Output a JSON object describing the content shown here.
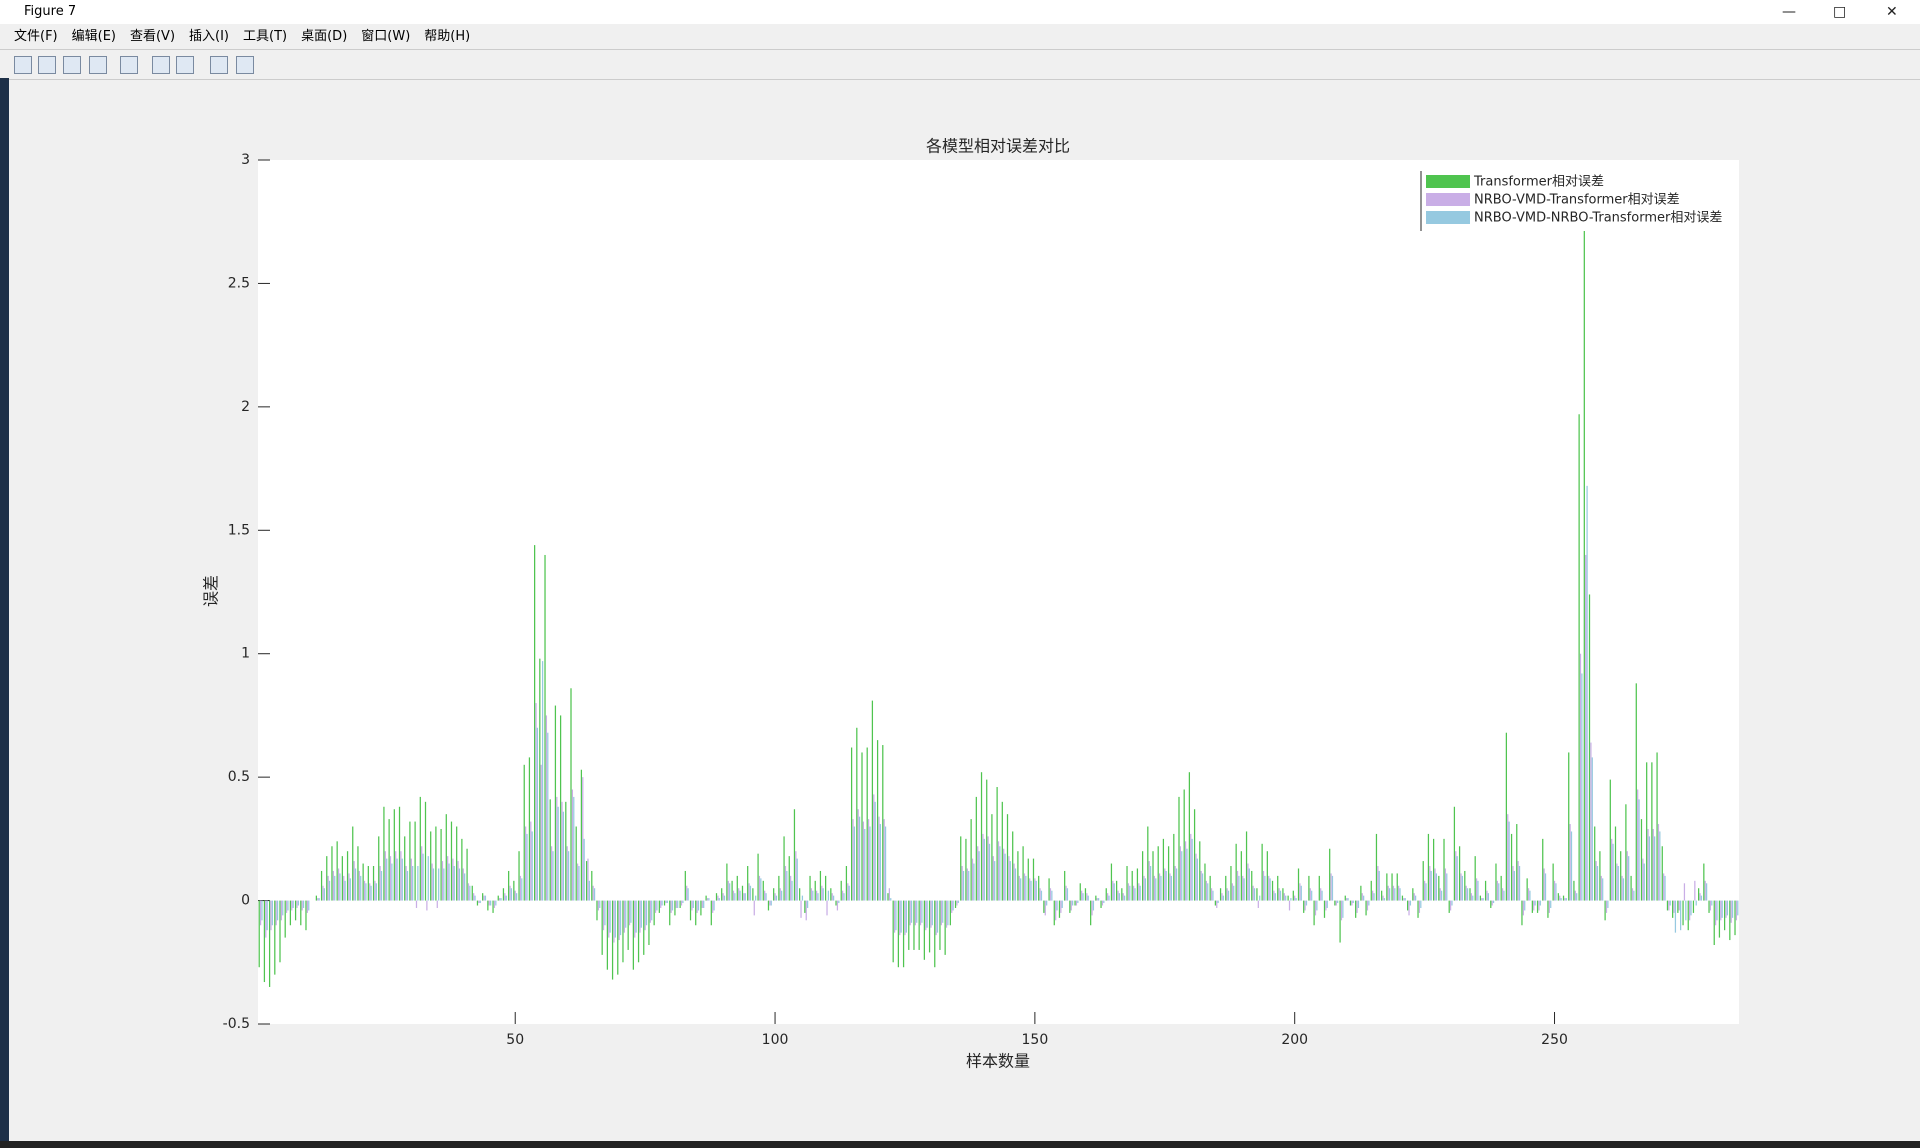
{
  "window": {
    "title": "Figure 7",
    "menu": [
      "文件(F)",
      "编辑(E)",
      "查看(V)",
      "插入(I)",
      "工具(T)",
      "桌面(D)",
      "窗口(W)",
      "帮助(H)"
    ]
  },
  "chart_data": {
    "type": "bar",
    "title": "各模型相对误差对比",
    "xlabel": "样本数量",
    "ylabel": "误差",
    "xlim": [
      0.5,
      285.5
    ],
    "xticks": [
      50,
      100,
      150,
      200,
      250
    ],
    "ylim": [
      -0.5,
      3
    ],
    "yticks": [
      -0.5,
      0,
      0.5,
      1,
      1.5,
      2,
      2.5,
      3
    ],
    "grid": false,
    "legend": "northeast",
    "series": [
      {
        "name": "Transformer相对误差",
        "color": "#4fc44f",
        "values": [
          -0.27,
          -0.33,
          -0.35,
          -0.3,
          -0.25,
          -0.15,
          -0.1,
          -0.08,
          -0.1,
          -0.12,
          0,
          0.02,
          0.12,
          0.18,
          0.22,
          0.24,
          0.18,
          0.2,
          0.3,
          0.22,
          0.15,
          0.14,
          0.14,
          0.26,
          0.38,
          0.33,
          0.37,
          0.38,
          0.26,
          0.32,
          0.32,
          0.42,
          0.4,
          0.28,
          0.3,
          0.29,
          0.35,
          0.32,
          0.3,
          0.25,
          0.21,
          0.06,
          -0.02,
          0.03,
          -0.04,
          -0.05,
          0.02,
          0.05,
          0.12,
          0.08,
          0.2,
          0.55,
          0.58,
          1.44,
          0.98,
          1.4,
          0.41,
          0.79,
          0.75,
          0.4,
          0.86,
          0.3,
          0.53,
          0.16,
          0.12,
          -0.08,
          -0.22,
          -0.28,
          -0.32,
          -0.3,
          -0.25,
          -0.2,
          -0.28,
          -0.25,
          -0.22,
          -0.18,
          -0.1,
          -0.05,
          -0.02,
          -0.1,
          -0.06,
          -0.03,
          0.12,
          -0.08,
          -0.1,
          -0.06,
          0.02,
          -0.1,
          0.03,
          0.05,
          0.15,
          0.08,
          0.1,
          0.06,
          0.14,
          0.05,
          0.19,
          0.08,
          -0.04,
          0.05,
          0.1,
          0.26,
          0.18,
          0.37,
          0.05,
          -0.05,
          0.1,
          0.08,
          0.12,
          0.1,
          0.05,
          -0.02,
          0.08,
          0.14,
          0.62,
          0.7,
          0.6,
          0.62,
          0.81,
          0.65,
          0.63,
          0.03,
          -0.25,
          -0.27,
          -0.27,
          -0.2,
          -0.2,
          -0.2,
          -0.24,
          -0.21,
          -0.27,
          -0.2,
          -0.22,
          -0.1,
          -0.03,
          0.26,
          0.25,
          0.33,
          0.42,
          0.52,
          0.49,
          0.35,
          0.46,
          0.4,
          0.35,
          0.28,
          0.2,
          0.22,
          0.17,
          0.17,
          0.1,
          -0.05,
          0.09,
          -0.1,
          -0.07,
          0.12,
          -0.05,
          -0.02,
          0.07,
          0.05,
          -0.1,
          0.02,
          -0.03,
          0.05,
          0.15,
          0.08,
          0.05,
          0.14,
          0.12,
          0.13,
          0.2,
          0.3,
          0.2,
          0.22,
          0.25,
          0.22,
          0.27,
          0.42,
          0.45,
          0.52,
          0.37,
          0.24,
          0.15,
          0.1,
          -0.02,
          0.05,
          0.1,
          0.14,
          0.23,
          0.2,
          0.28,
          0.12,
          0.05,
          0.23,
          0.2,
          0.08,
          0.1,
          0.05,
          0.02,
          0.04,
          0.13,
          -0.05,
          0.1,
          -0.1,
          0.1,
          -0.07,
          0.21,
          -0.02,
          -0.17,
          0.02,
          -0.02,
          -0.07,
          0.06,
          -0.06,
          0.08,
          0.27,
          0.04,
          0.11,
          0.11,
          0.11,
          0.02,
          -0.04,
          0.05,
          -0.07,
          0.16,
          0.27,
          0.25,
          0.1,
          0.25,
          -0.05,
          0.38,
          0.22,
          0.12,
          0.05,
          0.18,
          0.02,
          0.08,
          -0.03,
          0.15,
          0.1,
          0.68,
          0.27,
          0.31,
          -0.1,
          0.09,
          -0.05,
          -0.05,
          0.25,
          -0.07,
          0.15,
          0.03,
          0.02,
          0.6,
          0.08,
          1.97,
          2.72,
          1.24,
          0.3,
          0.2,
          -0.08,
          0.49,
          0.3,
          0.2,
          0.39,
          0.1,
          0.88,
          0.33,
          0.56,
          0.56,
          0.6,
          0.22,
          -0.04,
          -0.07,
          -0.05,
          -0.1,
          -0.12,
          -0.05,
          0.05,
          0.15,
          -0.05,
          -0.18,
          -0.15,
          -0.12,
          -0.16,
          -0.14
        ]
      },
      {
        "name": "NRBO-VMD-Transformer相对误差",
        "color": "#c9aee6",
        "values": [
          -0.1,
          -0.15,
          -0.12,
          -0.1,
          -0.08,
          -0.05,
          -0.04,
          -0.03,
          -0.04,
          -0.05,
          0,
          0.01,
          0.06,
          0.1,
          0.12,
          0.13,
          0.1,
          0.11,
          0.16,
          0.12,
          0.08,
          0.07,
          0.08,
          0.14,
          0.2,
          0.18,
          0.2,
          0.2,
          0.14,
          0.17,
          -0.03,
          0.22,
          -0.04,
          0.15,
          -0.03,
          0.16,
          0.18,
          0.17,
          0.16,
          0.13,
          0.07,
          0.03,
          -0.01,
          0.02,
          -0.02,
          -0.03,
          0.01,
          0.03,
          0.06,
          0.04,
          0.1,
          0.3,
          0.32,
          0.8,
          0.55,
          0.75,
          0.22,
          0.42,
          0.4,
          0.22,
          0.45,
          0.15,
          0.5,
          0.17,
          0.06,
          -0.04,
          -0.12,
          -0.15,
          -0.17,
          -0.16,
          -0.13,
          -0.1,
          -0.15,
          -0.13,
          -0.12,
          -0.09,
          -0.05,
          -0.03,
          -0.01,
          -0.05,
          -0.03,
          -0.02,
          0.06,
          -0.04,
          -0.05,
          -0.03,
          0.01,
          -0.05,
          0.02,
          0.03,
          0.08,
          0.04,
          0.05,
          0.03,
          0.07,
          -0.06,
          0.1,
          0.04,
          -0.02,
          0.03,
          0.05,
          0.14,
          0.1,
          0.2,
          -0.07,
          -0.08,
          0.05,
          0.04,
          0.06,
          -0.06,
          0.03,
          -0.04,
          0.04,
          0.07,
          0.33,
          0.37,
          0.32,
          0.33,
          0.43,
          0.34,
          0.33,
          0.05,
          -0.13,
          -0.14,
          -0.14,
          -0.1,
          -0.1,
          -0.1,
          -0.12,
          -0.11,
          -0.14,
          -0.1,
          -0.11,
          -0.05,
          -0.02,
          0.14,
          0.13,
          0.17,
          0.22,
          0.27,
          0.26,
          0.18,
          0.24,
          0.21,
          0.18,
          0.15,
          0.1,
          0.11,
          0.09,
          0.09,
          0.05,
          -0.06,
          0.05,
          -0.08,
          -0.05,
          0.06,
          -0.04,
          -0.02,
          0.04,
          0.03,
          -0.06,
          0.01,
          -0.02,
          0.03,
          0.08,
          0.04,
          0.03,
          0.07,
          0.06,
          0.07,
          0.1,
          0.16,
          0.1,
          0.11,
          0.13,
          0.11,
          0.14,
          0.22,
          0.24,
          0.27,
          0.19,
          0.12,
          0.08,
          0.05,
          -0.03,
          0.03,
          0.05,
          0.07,
          0.12,
          0.1,
          0.15,
          0.06,
          -0.03,
          0.12,
          0.1,
          0.04,
          0.05,
          0.03,
          -0.04,
          0.02,
          0.07,
          -0.04,
          0.05,
          -0.06,
          0.05,
          -0.04,
          0.11,
          -0.02,
          -0.08,
          0.01,
          -0.02,
          -0.05,
          0.03,
          -0.04,
          0.04,
          0.14,
          0.02,
          0.06,
          0.06,
          0.06,
          0.01,
          -0.06,
          0.03,
          -0.05,
          0.08,
          0.14,
          0.13,
          0.05,
          0.13,
          -0.04,
          0.2,
          0.11,
          0.06,
          0.03,
          0.09,
          0.01,
          0.04,
          -0.02,
          0.08,
          0.05,
          0.35,
          0.14,
          0.16,
          -0.06,
          0.05,
          -0.04,
          -0.04,
          0.13,
          -0.05,
          0.08,
          0.02,
          0.01,
          0.31,
          0.04,
          1.0,
          1.4,
          0.64,
          0.16,
          0.1,
          -0.05,
          0.25,
          0.15,
          0.1,
          0.2,
          0.05,
          0.45,
          0.17,
          0.29,
          0.29,
          0.31,
          0.11,
          -0.04,
          -0.05,
          -0.04,
          0.07,
          -0.08,
          0.08,
          0.03,
          0.08,
          -0.04,
          -0.1,
          -0.08,
          -0.07,
          -0.09,
          -0.08
        ]
      },
      {
        "name": "NRBO-VMD-NRBO-Transformer相对误差",
        "color": "#96c9e0",
        "values": [
          -0.08,
          -0.12,
          -0.1,
          -0.08,
          -0.06,
          -0.04,
          -0.03,
          -0.02,
          -0.03,
          -0.04,
          0,
          0.01,
          0.05,
          0.08,
          0.1,
          0.11,
          0.08,
          0.09,
          0.13,
          0.1,
          0.07,
          0.06,
          0.07,
          0.12,
          0.17,
          0.15,
          0.17,
          0.17,
          0.12,
          0.14,
          0.14,
          0.19,
          0.18,
          0.13,
          0.13,
          0.13,
          0.15,
          0.14,
          0.13,
          0.11,
          0.06,
          0.02,
          -0.01,
          0.02,
          -0.02,
          -0.02,
          0.01,
          0.02,
          0.05,
          0.03,
          0.09,
          0.27,
          0.28,
          0.7,
          0.97,
          0.68,
          0.2,
          0.38,
          0.36,
          0.2,
          0.42,
          0.14,
          0.25,
          0.08,
          0.05,
          -0.03,
          -0.1,
          -0.13,
          -0.15,
          -0.14,
          -0.11,
          -0.09,
          -0.13,
          -0.11,
          -0.1,
          -0.08,
          -0.04,
          -0.02,
          -0.01,
          -0.04,
          -0.03,
          -0.01,
          0.05,
          -0.03,
          -0.04,
          -0.03,
          0.01,
          -0.04,
          0.01,
          0.02,
          0.07,
          0.03,
          0.04,
          0.03,
          0.06,
          0.02,
          0.09,
          0.03,
          -0.02,
          0.02,
          0.04,
          0.12,
          0.08,
          0.17,
          0.02,
          -0.03,
          0.04,
          0.03,
          0.05,
          0.04,
          0.02,
          -0.01,
          0.03,
          0.06,
          0.3,
          0.34,
          0.29,
          0.3,
          0.4,
          0.31,
          0.3,
          0.01,
          -0.12,
          -0.13,
          -0.13,
          -0.09,
          -0.09,
          -0.09,
          -0.11,
          -0.1,
          -0.13,
          -0.09,
          -0.1,
          -0.04,
          -0.01,
          0.12,
          0.12,
          0.15,
          0.2,
          0.25,
          0.23,
          0.16,
          0.22,
          0.19,
          0.16,
          0.13,
          0.09,
          0.1,
          0.08,
          0.08,
          0.04,
          -0.02,
          0.04,
          -0.04,
          -0.03,
          0.05,
          -0.02,
          -0.01,
          0.03,
          0.02,
          -0.04,
          0.01,
          -0.01,
          0.02,
          0.07,
          0.03,
          0.02,
          0.06,
          0.05,
          0.06,
          0.09,
          0.14,
          0.09,
          0.1,
          0.12,
          0.1,
          0.13,
          0.2,
          0.21,
          0.25,
          0.17,
          0.11,
          0.07,
          0.04,
          -0.01,
          0.02,
          0.04,
          0.06,
          0.1,
          0.09,
          0.13,
          0.05,
          0.02,
          0.1,
          0.09,
          0.03,
          0.04,
          0.02,
          0.01,
          0.01,
          0.06,
          -0.02,
          0.04,
          -0.04,
          0.04,
          -0.03,
          0.1,
          -0.01,
          -0.07,
          0.01,
          -0.01,
          -0.03,
          0.02,
          -0.02,
          0.03,
          0.12,
          0.01,
          0.05,
          0.05,
          0.05,
          0.01,
          -0.02,
          0.02,
          -0.03,
          0.07,
          0.12,
          0.11,
          0.04,
          0.11,
          -0.02,
          0.18,
          0.1,
          0.05,
          0.02,
          0.08,
          0.01,
          0.03,
          -0.01,
          0.07,
          0.04,
          0.32,
          0.12,
          0.14,
          -0.04,
          0.04,
          -0.02,
          -0.02,
          0.11,
          -0.03,
          0.07,
          0.01,
          0.01,
          0.28,
          0.03,
          0.92,
          1.68,
          0.58,
          0.14,
          0.09,
          -0.03,
          0.23,
          0.14,
          0.09,
          0.18,
          0.04,
          0.41,
          0.15,
          0.26,
          0.26,
          0.28,
          0.1,
          -0.02,
          -0.13,
          -0.12,
          -0.08,
          -0.06,
          -0.02,
          0.02,
          0.07,
          -0.02,
          -0.08,
          -0.07,
          -0.06,
          -0.07,
          -0.06
        ]
      }
    ]
  }
}
